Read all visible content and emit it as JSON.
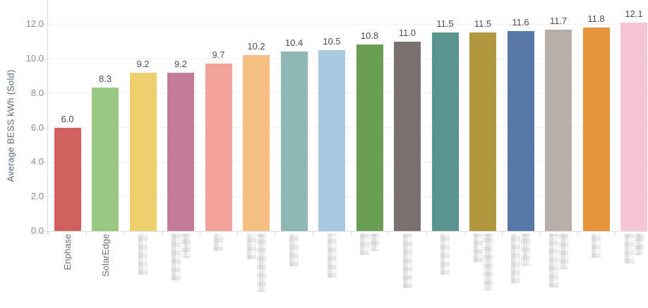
{
  "chart_data": {
    "type": "bar",
    "title": "",
    "xlabel": "",
    "ylabel": "Average BESS kWh (Sold)",
    "ylim": [
      0,
      12.5
    ],
    "y_ticks": [
      0,
      2,
      4,
      6,
      8,
      10,
      12
    ],
    "y_tick_labels": [
      "0.0",
      "2.0",
      "4.0",
      "6.0",
      "8.0",
      "10.0",
      "12.0"
    ],
    "grid": "horizontal",
    "legend": "none",
    "categories": [
      "Enphase",
      "SolarEdge",
      "",
      "",
      "",
      "",
      "",
      "",
      "",
      "",
      "",
      "",
      "",
      "",
      "",
      ""
    ],
    "values": [
      6.0,
      8.3,
      9.2,
      9.2,
      9.7,
      10.2,
      10.4,
      10.5,
      10.8,
      11.0,
      11.5,
      11.5,
      11.6,
      11.7,
      11.8,
      12.1
    ],
    "value_labels": [
      "6.0",
      "8.3",
      "9.2",
      "9.2",
      "9.7",
      "10.2",
      "10.4",
      "10.5",
      "10.8",
      "11.0",
      "11.5",
      "11.5",
      "11.6",
      "11.7",
      "11.8",
      "12.1"
    ],
    "bar_colors": [
      "#d1615d",
      "#98ca82",
      "#edd06e",
      "#c47d98",
      "#f3a39c",
      "#f7c083",
      "#90b8b2",
      "#a7c9e4",
      "#699f52",
      "#797270",
      "#5a948f",
      "#b2973e",
      "#5578a8",
      "#b8afab",
      "#e6953a",
      "#f4c6d7"
    ],
    "redacted_categories": {
      "2": [
        58
      ],
      "3": [
        66,
        34
      ],
      "4": [
        24
      ],
      "5": [
        36,
        82
      ],
      "6": [
        46
      ],
      "7": [
        62
      ],
      "8": [
        30,
        24
      ],
      "9": [
        77
      ],
      "10": [
        58
      ],
      "11": [
        40,
        80
      ],
      "12": [
        70,
        45
      ],
      "13": [
        76,
        50
      ],
      "14": [
        34
      ],
      "15": [
        42,
        30
      ]
    }
  }
}
